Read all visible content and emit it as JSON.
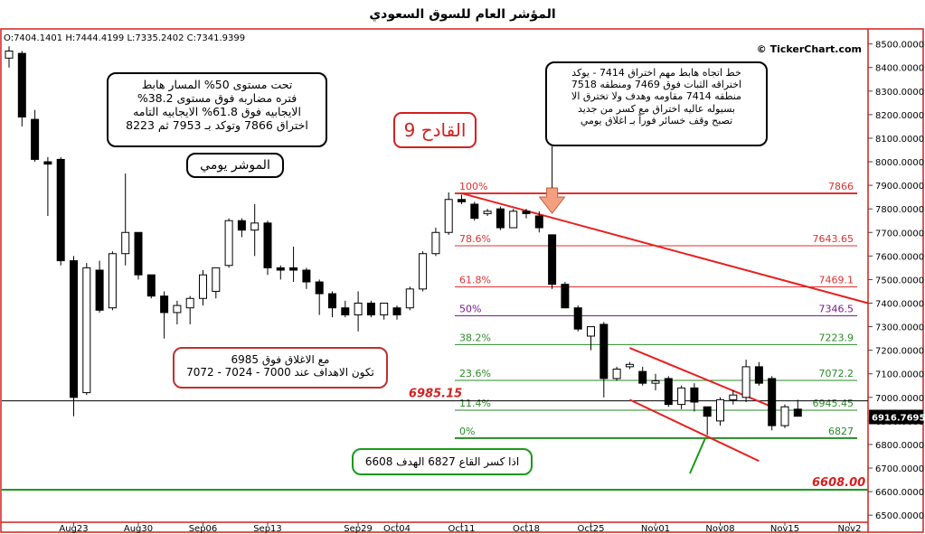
{
  "title": "المؤشر العام للسوق السعودي",
  "ohlc_readout": "O:7404.1401  H:7444.4199  L:7335.2402  C:7341.9399",
  "copyright": "© TickerChart.com",
  "colors": {
    "frame": "#d42020",
    "bull": "#ffffff",
    "bear": "#000000",
    "fib_red": "#e03030",
    "fib_green": "#2a8a2a",
    "fib_purple": "#7a1a8a",
    "trend": "#e82020",
    "target": "#1a9a1a",
    "arrow": "#f4a080"
  },
  "notes": {
    "fib_note": [
      "تحت مستوى 50% المسار هابط",
      "فتره مضاربه فوق مستوى 38.2%",
      "الايجابيه فوق 61.8% الايجابيه التامه",
      "اختراق 7866 وتوكد بـ 7953 ثم 8223"
    ],
    "daily_label": "الموشر يومي",
    "qadeh_label": "القادح 9",
    "trend_note": [
      "خط اتجاه هابط مهم اختراق 7414 - يوكد",
      "اختراقه الثبات فوق 7469 ومنطقه 7518",
      "منطقه 7414 مقاومه وهدف ولا تخترق الا",
      "بسيوله عاليه اختراق مع كسر من جديد",
      "تصبح وقف خسائر فوراً بـ اغلاق يومي"
    ],
    "close_note": [
      "مع الاغلاق فوق 6985",
      "تكون الاهداف عند 7000 - 7024 - 7072"
    ],
    "break_note": "اذا كسر القاع 6827 الهدف 6608"
  },
  "chart_data": {
    "type": "candlestick",
    "ylim": [
      6470,
      8560
    ],
    "y_ticks": [
      "8500.0000",
      "8400.0000",
      "8300.0000",
      "8200.0000",
      "8100.0000",
      "8000.0000",
      "7900.0000",
      "7800.0000",
      "7700.0000",
      "7600.0000",
      "7500.0000",
      "7400.0000",
      "7300.0000",
      "7200.0000",
      "7100.0000",
      "7000.0000",
      "6900.0000",
      "6800.0000",
      "6700.0000",
      "6600.0000",
      "6500.0000"
    ],
    "y_tick_values": [
      8500,
      8400,
      8300,
      8200,
      8100,
      8000,
      7900,
      7800,
      7700,
      7600,
      7500,
      7400,
      7300,
      7200,
      7100,
      7000,
      6900,
      6800,
      6700,
      6600,
      6500
    ],
    "x_ticks": [
      {
        "label": "Aug23",
        "index": 5
      },
      {
        "label": "Aug30",
        "index": 10
      },
      {
        "label": "Sep06",
        "index": 15
      },
      {
        "label": "Sep13",
        "index": 20
      },
      {
        "label": "Sep29",
        "index": 27
      },
      {
        "label": "Oct04",
        "index": 30
      },
      {
        "label": "Oct11",
        "index": 35
      },
      {
        "label": "Oct18",
        "index": 40
      },
      {
        "label": "Oct25",
        "index": 45
      },
      {
        "label": "Nov01",
        "index": 50
      },
      {
        "label": "Nov08",
        "index": 55
      },
      {
        "label": "Nov15",
        "index": 60
      },
      {
        "label": "Nov2",
        "index": 65
      }
    ],
    "candles": [
      [
        8440,
        8490,
        8400,
        8470
      ],
      [
        8460,
        8470,
        8150,
        8190
      ],
      [
        8180,
        8220,
        8000,
        8010
      ],
      [
        8000,
        8020,
        7770,
        7990
      ],
      [
        8010,
        8020,
        7560,
        7580
      ],
      [
        7580,
        7600,
        6920,
        7000
      ],
      [
        7020,
        7570,
        7010,
        7550
      ],
      [
        7540,
        7580,
        7360,
        7370
      ],
      [
        7380,
        7620,
        7370,
        7610
      ],
      [
        7610,
        7950,
        7560,
        7700
      ],
      [
        7700,
        7700,
        7500,
        7520
      ],
      [
        7520,
        7520,
        7420,
        7430
      ],
      [
        7430,
        7450,
        7250,
        7360
      ],
      [
        7360,
        7410,
        7310,
        7390
      ],
      [
        7380,
        7430,
        7310,
        7420
      ],
      [
        7420,
        7540,
        7390,
        7520
      ],
      [
        7450,
        7550,
        7420,
        7550
      ],
      [
        7560,
        7760,
        7550,
        7750
      ],
      [
        7750,
        7760,
        7680,
        7710
      ],
      [
        7710,
        7820,
        7600,
        7740
      ],
      [
        7740,
        7750,
        7520,
        7550
      ],
      [
        7550,
        7560,
        7500,
        7540
      ],
      [
        7550,
        7640,
        7490,
        7540
      ],
      [
        7540,
        7550,
        7460,
        7490
      ],
      [
        7490,
        7500,
        7350,
        7440
      ],
      [
        7440,
        7450,
        7340,
        7380
      ],
      [
        7380,
        7410,
        7340,
        7350
      ],
      [
        7350,
        7450,
        7280,
        7400
      ],
      [
        7400,
        7410,
        7340,
        7350
      ],
      [
        7350,
        7400,
        7330,
        7400
      ],
      [
        7380,
        7390,
        7330,
        7350
      ],
      [
        7380,
        7470,
        7370,
        7460
      ],
      [
        7460,
        7620,
        7450,
        7610
      ],
      [
        7610,
        7720,
        7600,
        7700
      ],
      [
        7700,
        7870,
        7690,
        7840
      ],
      [
        7840,
        7860,
        7820,
        7830
      ],
      [
        7820,
        7830,
        7750,
        7760
      ],
      [
        7780,
        7800,
        7770,
        7790
      ],
      [
        7800,
        7810,
        7710,
        7720
      ],
      [
        7720,
        7800,
        7720,
        7790
      ],
      [
        7790,
        7800,
        7760,
        7780
      ],
      [
        7770,
        7790,
        7700,
        7720
      ],
      [
        7690,
        7690,
        7460,
        7480
      ],
      [
        7480,
        7490,
        7380,
        7380
      ],
      [
        7380,
        7390,
        7280,
        7290
      ],
      [
        7260,
        7300,
        7200,
        7300
      ],
      [
        7310,
        7320,
        7000,
        7080
      ],
      [
        7080,
        7130,
        7070,
        7120
      ],
      [
        7130,
        7150,
        7120,
        7140
      ],
      [
        7110,
        7130,
        7050,
        7060
      ],
      [
        7060,
        7100,
        7030,
        7070
      ],
      [
        7080,
        7090,
        6960,
        6970
      ],
      [
        6970,
        7050,
        6950,
        7040
      ],
      [
        7040,
        7060,
        6940,
        6980
      ],
      [
        6960,
        6960,
        6840,
        6920
      ],
      [
        6900,
        7000,
        6880,
        6990
      ],
      [
        6990,
        7030,
        6970,
        7010
      ],
      [
        7000,
        7160,
        6980,
        7130
      ],
      [
        7130,
        7150,
        7050,
        7060
      ],
      [
        7080,
        7090,
        6860,
        6880
      ],
      [
        6880,
        6970,
        6870,
        6960
      ],
      [
        6950,
        6990,
        6920,
        6920
      ]
    ],
    "fib_levels": [
      {
        "pct": "100%",
        "value": 7866,
        "value_label": "7866",
        "color": "#e03030"
      },
      {
        "pct": "78.6%",
        "value": 7643.65,
        "value_label": "7643.65",
        "color": "#e03030"
      },
      {
        "pct": "61.8%",
        "value": 7469.1,
        "value_label": "7469.1",
        "color": "#e03030"
      },
      {
        "pct": "50%",
        "value": 7346.5,
        "value_label": "7346.5",
        "color": "#7a1a8a"
      },
      {
        "pct": "38.2%",
        "value": 7223.9,
        "value_label": "7223.9",
        "color": "#2a8a2a"
      },
      {
        "pct": "23.6%",
        "value": 7072.2,
        "value_label": "7072.2",
        "color": "#2a8a2a"
      },
      {
        "pct": "11.4%",
        "value": 6945.45,
        "value_label": "6945.45",
        "color": "#2a8a2a"
      },
      {
        "pct": "0%",
        "value": 6827,
        "value_label": "6827",
        "color": "#2a8a2a"
      }
    ],
    "support_lines": [
      {
        "value": 6985.15,
        "label": "6985.15",
        "color": "#000000"
      },
      {
        "value": 6608,
        "label": "6608.00",
        "color": "#1a9a1a"
      }
    ],
    "last_price_label": "6916.7695",
    "last_price_value": 6916.77,
    "trend_lines": [
      {
        "from": [
          35,
          7866
        ],
        "to": [
          70,
          7400
        ]
      },
      {
        "from": [
          48,
          7210
        ],
        "to": [
          59,
          6960
        ]
      },
      {
        "from": [
          48,
          6990
        ],
        "to": [
          58,
          6730
        ]
      }
    ]
  }
}
